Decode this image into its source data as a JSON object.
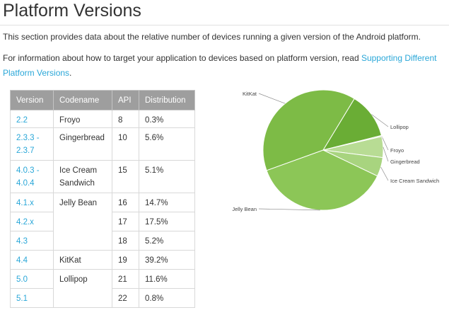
{
  "page": {
    "title": "Platform Versions",
    "intro": "This section provides data about the relative number of devices running a given version of the Android platform.",
    "info_prefix": "For information about how to target your application to devices based on platform version, read ",
    "info_link": "Supporting Different Platform Versions",
    "info_suffix": "."
  },
  "table": {
    "headers": [
      "Version",
      "Codename",
      "API",
      "Distribution"
    ],
    "rows": [
      {
        "version": "2.2",
        "codename": "Froyo",
        "api": "8",
        "distribution": "0.3%"
      },
      {
        "version": "2.3.3 - 2.3.7",
        "codename": "Gingerbread",
        "api": "10",
        "distribution": "5.6%"
      },
      {
        "version": "4.0.3 - 4.0.4",
        "codename": "Ice Cream Sandwich",
        "api": "15",
        "distribution": "5.1%"
      },
      {
        "version": "4.1.x",
        "codename": "Jelly Bean",
        "api": "16",
        "distribution": "14.7%"
      },
      {
        "version": "4.2.x",
        "codename": "",
        "api": "17",
        "distribution": "17.5%"
      },
      {
        "version": "4.3",
        "codename": "",
        "api": "18",
        "distribution": "5.2%"
      },
      {
        "version": "4.4",
        "codename": "KitKat",
        "api": "19",
        "distribution": "39.2%"
      },
      {
        "version": "5.0",
        "codename": "Lollipop",
        "api": "21",
        "distribution": "11.6%"
      },
      {
        "version": "5.1",
        "codename": "",
        "api": "22",
        "distribution": "0.8%"
      }
    ]
  },
  "chart_data": {
    "type": "pie",
    "title": "",
    "slices": [
      {
        "label": "Lollipop",
        "value": 12.4,
        "color": "#6aad35"
      },
      {
        "label": "Froyo",
        "value": 0.3,
        "color": "#d9ecc4"
      },
      {
        "label": "Gingerbread",
        "value": 5.6,
        "color": "#b8dc94"
      },
      {
        "label": "Ice Cream Sandwich",
        "value": 5.1,
        "color": "#a8d47f"
      },
      {
        "label": "Jelly Bean",
        "value": 37.4,
        "color": "#8cc657"
      },
      {
        "label": "KitKat",
        "value": 39.2,
        "color": "#7dbb46"
      }
    ],
    "legend": "outside labels with leader lines"
  }
}
